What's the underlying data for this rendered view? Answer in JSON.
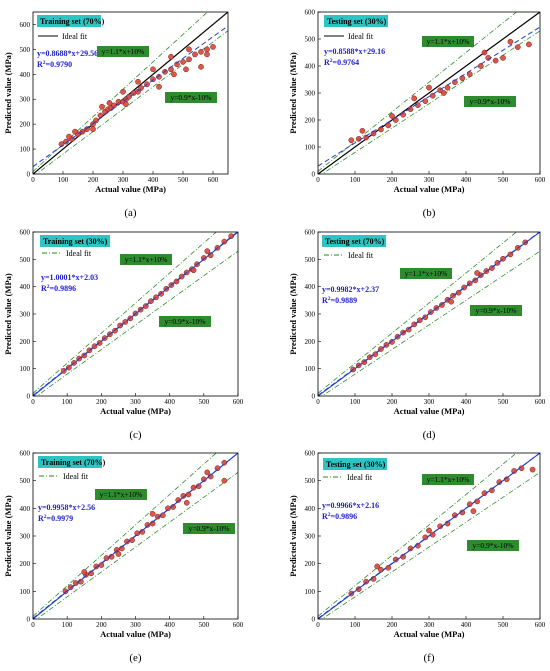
{
  "chart_data": [
    {
      "type": "scatter",
      "panel": "(a)",
      "set_label": "Training set (70%)",
      "legend_line": "Ideal fit",
      "legend_style": "solid",
      "equation": "y=0.8688*x+29.56",
      "r2_label": "R",
      "r2_sup": "2",
      "r2_value": "=0.9790",
      "fit": {
        "slope": 0.8688,
        "intercept": 29.56
      },
      "band_upper_label": "y=1.1*x+10%",
      "band_lower_label": "y=0.9*x-10%",
      "xlabel": "Actual value (MPa)",
      "ylabel": "Predicted value (MPa)",
      "xlim": [
        0,
        650
      ],
      "ylim": [
        0,
        650
      ],
      "xticks": [
        "0",
        "100",
        "200",
        "300",
        "400",
        "500",
        "600"
      ],
      "yticks": [
        "0",
        "100",
        "200",
        "300",
        "400",
        "500",
        "600"
      ],
      "points": [
        [
          95,
          120
        ],
        [
          110,
          130
        ],
        [
          130,
          140
        ],
        [
          150,
          160
        ],
        [
          165,
          170
        ],
        [
          180,
          180
        ],
        [
          200,
          200
        ],
        [
          210,
          215
        ],
        [
          225,
          235
        ],
        [
          240,
          250
        ],
        [
          250,
          260
        ],
        [
          260,
          265
        ],
        [
          270,
          275
        ],
        [
          285,
          290
        ],
        [
          300,
          290
        ],
        [
          310,
          300
        ],
        [
          320,
          310
        ],
        [
          335,
          325
        ],
        [
          350,
          330
        ],
        [
          360,
          345
        ],
        [
          380,
          360
        ],
        [
          400,
          380
        ],
        [
          420,
          390
        ],
        [
          440,
          410
        ],
        [
          460,
          420
        ],
        [
          480,
          440
        ],
        [
          500,
          450
        ],
        [
          520,
          460
        ],
        [
          540,
          480
        ],
        [
          560,
          490
        ],
        [
          580,
          500
        ],
        [
          600,
          510
        ],
        [
          120,
          150
        ],
        [
          140,
          170
        ],
        [
          230,
          270
        ],
        [
          255,
          285
        ],
        [
          300,
          330
        ],
        [
          350,
          370
        ],
        [
          400,
          420
        ],
        [
          460,
          470
        ],
        [
          520,
          500
        ],
        [
          580,
          480
        ],
        [
          200,
          180
        ],
        [
          310,
          280
        ],
        [
          420,
          350
        ],
        [
          470,
          400
        ],
        [
          510,
          420
        ],
        [
          560,
          430
        ]
      ]
    },
    {
      "type": "scatter",
      "panel": "(b)",
      "set_label": "Testing set (30%)",
      "legend_line": "Ideal fit",
      "legend_style": "solid",
      "equation": "y=0.8588*x+29.16",
      "r2_label": "R",
      "r2_sup": "2",
      "r2_value": "=0.9764",
      "fit": {
        "slope": 0.8588,
        "intercept": 29.16
      },
      "band_upper_label": "y=1.1*x+10%",
      "band_lower_label": "y=0.9*x-10%",
      "xlabel": "Actual value (MPa)",
      "ylabel": "Predicted value (MPa)",
      "xlim": [
        0,
        600
      ],
      "ylim": [
        0,
        600
      ],
      "xticks": [
        "0",
        "100",
        "200",
        "300",
        "400",
        "500",
        "600"
      ],
      "yticks": [
        "0",
        "100",
        "200",
        "300",
        "400",
        "500",
        "600"
      ],
      "points": [
        [
          90,
          125
        ],
        [
          110,
          130
        ],
        [
          130,
          135
        ],
        [
          150,
          150
        ],
        [
          170,
          165
        ],
        [
          190,
          180
        ],
        [
          210,
          200
        ],
        [
          230,
          220
        ],
        [
          250,
          240
        ],
        [
          270,
          255
        ],
        [
          290,
          270
        ],
        [
          310,
          290
        ],
        [
          330,
          310
        ],
        [
          350,
          320
        ],
        [
          370,
          340
        ],
        [
          390,
          355
        ],
        [
          410,
          370
        ],
        [
          440,
          400
        ],
        [
          460,
          430
        ],
        [
          480,
          420
        ],
        [
          500,
          430
        ],
        [
          540,
          470
        ],
        [
          570,
          480
        ],
        [
          120,
          160
        ],
        [
          200,
          215
        ],
        [
          260,
          280
        ],
        [
          300,
          320
        ],
        [
          340,
          300
        ],
        [
          450,
          450
        ],
        [
          520,
          490
        ]
      ]
    },
    {
      "type": "scatter",
      "panel": "(c)",
      "set_label": "Training  set (30%)",
      "legend_line": "Ideal fit",
      "legend_style": "dashdot",
      "equation": "y=1.0001*x+2.03",
      "r2_label": "R",
      "r2_sup": "2",
      "r2_value": "=0.9896",
      "fit": {
        "slope": 1.0001,
        "intercept": 2.03
      },
      "band_upper_label": "y=1.1*x+10%",
      "band_lower_label": "y=0.9*x-10%",
      "xlabel": "Actual value (MPa)",
      "ylabel": "Predicted value (MPa)",
      "xlim": [
        0,
        600
      ],
      "ylim": [
        0,
        600
      ],
      "xticks": [
        "0",
        "100",
        "200",
        "300",
        "400",
        "500",
        "600"
      ],
      "yticks": [
        "0",
        "100",
        "200",
        "300",
        "400",
        "500",
        "600"
      ],
      "points": [
        [
          90,
          92
        ],
        [
          105,
          104
        ],
        [
          120,
          121
        ],
        [
          135,
          137
        ],
        [
          150,
          148
        ],
        [
          165,
          167
        ],
        [
          180,
          182
        ],
        [
          195,
          194
        ],
        [
          210,
          212
        ],
        [
          225,
          226
        ],
        [
          240,
          239
        ],
        [
          255,
          258
        ],
        [
          270,
          271
        ],
        [
          285,
          284
        ],
        [
          300,
          302
        ],
        [
          315,
          316
        ],
        [
          330,
          329
        ],
        [
          345,
          347
        ],
        [
          360,
          361
        ],
        [
          375,
          374
        ],
        [
          390,
          392
        ],
        [
          405,
          406
        ],
        [
          420,
          419
        ],
        [
          435,
          437
        ],
        [
          450,
          452
        ],
        [
          465,
          464
        ],
        [
          480,
          482
        ],
        [
          500,
          505
        ],
        [
          520,
          515
        ],
        [
          540,
          542
        ],
        [
          560,
          565
        ],
        [
          580,
          585
        ],
        [
          510,
          530
        ],
        [
          470,
          460
        ]
      ]
    },
    {
      "type": "scatter",
      "panel": "(d)",
      "set_label": "Testing set (70%)",
      "legend_line": "Ideal fit",
      "legend_style": "dashdot",
      "equation": "y=0.9982*x+2.37",
      "r2_label": "R",
      "r2_sup": "2",
      "r2_value": "=0.9889",
      "fit": {
        "slope": 0.9982,
        "intercept": 2.37
      },
      "band_upper_label": "y=1.1*x+10%",
      "band_lower_label": "y=0.9*x-10%",
      "xlabel": "Actual value (MPa)",
      "ylabel": "Predicted value (MPa)",
      "xlim": [
        0,
        600
      ],
      "ylim": [
        0,
        600
      ],
      "xticks": [
        "0",
        "100",
        "200",
        "300",
        "400",
        "500",
        "600"
      ],
      "yticks": [
        "0",
        "100",
        "200",
        "300",
        "400",
        "500",
        "600"
      ],
      "points": [
        [
          95,
          97
        ],
        [
          110,
          112
        ],
        [
          125,
          124
        ],
        [
          140,
          142
        ],
        [
          155,
          153
        ],
        [
          170,
          172
        ],
        [
          185,
          187
        ],
        [
          200,
          198
        ],
        [
          215,
          217
        ],
        [
          230,
          232
        ],
        [
          245,
          243
        ],
        [
          260,
          262
        ],
        [
          275,
          277
        ],
        [
          290,
          288
        ],
        [
          305,
          307
        ],
        [
          320,
          322
        ],
        [
          335,
          333
        ],
        [
          350,
          352
        ],
        [
          365,
          367
        ],
        [
          380,
          378
        ],
        [
          395,
          397
        ],
        [
          410,
          412
        ],
        [
          425,
          423
        ],
        [
          440,
          442
        ],
        [
          455,
          457
        ],
        [
          470,
          468
        ],
        [
          485,
          487
        ],
        [
          500,
          502
        ],
        [
          520,
          518
        ],
        [
          540,
          542
        ],
        [
          560,
          562
        ],
        [
          430,
          450
        ],
        [
          360,
          345
        ]
      ]
    },
    {
      "type": "scatter",
      "panel": "(e)",
      "set_label": "Training set (70%)",
      "legend_line": "Ideal fit",
      "legend_style": "dashdot",
      "equation": "y=0.9958*x+2.56",
      "r2_label": "R",
      "r2_sup": "2",
      "r2_value": "=0.9979",
      "fit": {
        "slope": 0.9958,
        "intercept": 2.56
      },
      "band_upper_label": "y=1.1*x+10%",
      "band_lower_label": "y=0.9*x-10%",
      "xlabel": "Actual value (MPa)",
      "ylabel": "Predicted value (MPa)",
      "xlim": [
        0,
        600
      ],
      "ylim": [
        0,
        600
      ],
      "xticks": [
        "0",
        "100",
        "200",
        "300",
        "400",
        "500",
        "600"
      ],
      "yticks": [
        "0",
        "100",
        "200",
        "300",
        "400",
        "500",
        "600"
      ],
      "points": [
        [
          95,
          100
        ],
        [
          110,
          115
        ],
        [
          125,
          130
        ],
        [
          140,
          135
        ],
        [
          155,
          160
        ],
        [
          170,
          165
        ],
        [
          185,
          190
        ],
        [
          200,
          195
        ],
        [
          215,
          220
        ],
        [
          230,
          225
        ],
        [
          245,
          250
        ],
        [
          260,
          255
        ],
        [
          275,
          280
        ],
        [
          290,
          285
        ],
        [
          305,
          310
        ],
        [
          320,
          315
        ],
        [
          335,
          340
        ],
        [
          350,
          345
        ],
        [
          365,
          370
        ],
        [
          380,
          375
        ],
        [
          395,
          400
        ],
        [
          410,
          405
        ],
        [
          425,
          430
        ],
        [
          440,
          445
        ],
        [
          455,
          450
        ],
        [
          470,
          475
        ],
        [
          485,
          480
        ],
        [
          500,
          505
        ],
        [
          520,
          515
        ],
        [
          540,
          545
        ],
        [
          560,
          565
        ],
        [
          150,
          170
        ],
        [
          250,
          235
        ],
        [
          350,
          380
        ],
        [
          450,
          420
        ],
        [
          510,
          530
        ],
        [
          560,
          500
        ]
      ]
    },
    {
      "type": "scatter",
      "panel": "(f)",
      "set_label": "Testing set (30%)",
      "legend_line": "Ideal fit",
      "legend_style": "dashdot",
      "equation": "y=0.9966*x+2.16",
      "r2_label": "R",
      "r2_sup": "2",
      "r2_value": "=0.9896",
      "fit": {
        "slope": 0.9966,
        "intercept": 2.16
      },
      "band_upper_label": "y=1.1*x+10%",
      "band_lower_label": "y=0.9*x-10%",
      "xlabel": "Actual value (MPa)",
      "ylabel": "Predicted value (MPa)",
      "xlim": [
        0,
        600
      ],
      "ylim": [
        0,
        600
      ],
      "xticks": [
        "0",
        "100",
        "200",
        "300",
        "400",
        "500",
        "600"
      ],
      "yticks": [
        "0",
        "100",
        "200",
        "300",
        "400",
        "500",
        "600"
      ],
      "points": [
        [
          90,
          92
        ],
        [
          110,
          108
        ],
        [
          130,
          135
        ],
        [
          150,
          145
        ],
        [
          170,
          178
        ],
        [
          190,
          185
        ],
        [
          210,
          215
        ],
        [
          230,
          225
        ],
        [
          250,
          255
        ],
        [
          270,
          265
        ],
        [
          290,
          295
        ],
        [
          310,
          305
        ],
        [
          330,
          335
        ],
        [
          350,
          345
        ],
        [
          370,
          375
        ],
        [
          390,
          385
        ],
        [
          410,
          415
        ],
        [
          430,
          425
        ],
        [
          450,
          455
        ],
        [
          470,
          465
        ],
        [
          490,
          495
        ],
        [
          510,
          505
        ],
        [
          530,
          535
        ],
        [
          550,
          545
        ],
        [
          580,
          540
        ],
        [
          160,
          190
        ],
        [
          300,
          320
        ],
        [
          420,
          390
        ]
      ]
    }
  ],
  "colors": {
    "point_fill": "#d8463a",
    "point_stroke": "#7a1f18",
    "ideal_line": "#000000",
    "ideal_line_dashdot": "#228b22",
    "fit_line": "#1f3fcf",
    "band_line": "#2e8b2e",
    "label_box": "#2ec4c4",
    "band_label_box": "#2e8b2e"
  }
}
